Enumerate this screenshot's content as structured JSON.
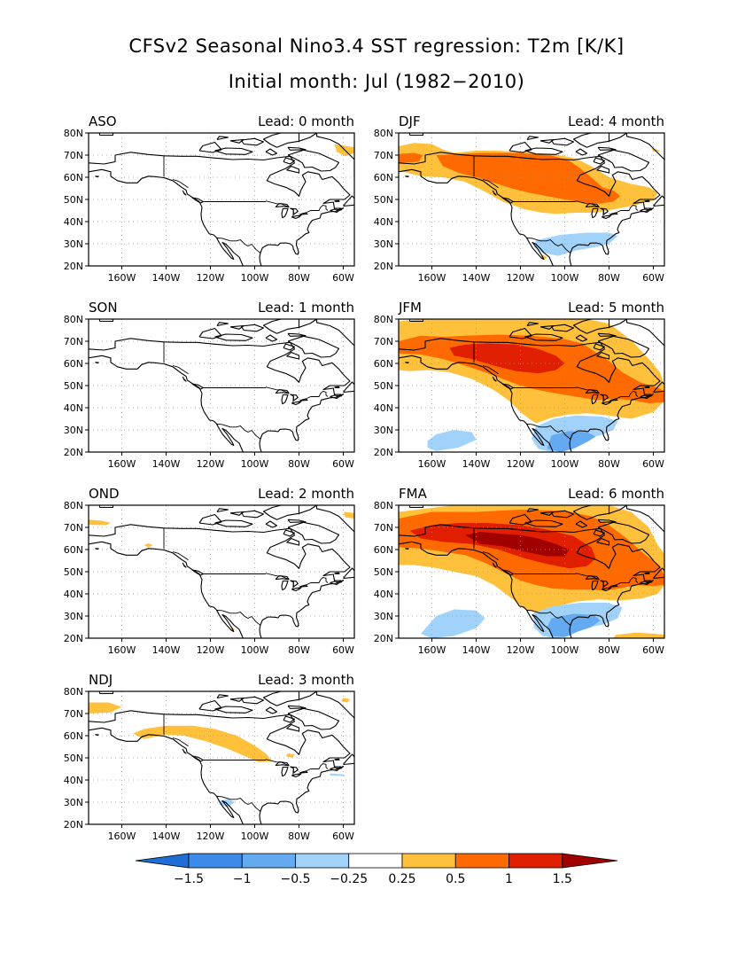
{
  "header": {
    "title": "CFSv2 Seasonal Nino3.4 SST regression: T2m [K/K]",
    "subtitle": "Initial month: Jul (1982−2010)"
  },
  "axes": {
    "lat_ticks": [
      "80N",
      "70N",
      "60N",
      "50N",
      "40N",
      "30N",
      "20N"
    ],
    "lon_ticks": [
      "160W",
      "140W",
      "120W",
      "100W",
      "80W",
      "60W"
    ]
  },
  "panels": [
    {
      "season": "ASO",
      "lead": "Lead: 0 month"
    },
    {
      "season": "SON",
      "lead": "Lead: 1 month"
    },
    {
      "season": "OND",
      "lead": "Lead: 2 month"
    },
    {
      "season": "NDJ",
      "lead": "Lead: 3 month"
    },
    {
      "season": "DJF",
      "lead": "Lead: 4 month"
    },
    {
      "season": "JFM",
      "lead": "Lead: 5 month"
    },
    {
      "season": "FMA",
      "lead": "Lead: 6 month"
    }
  ],
  "colorbar": {
    "labels": [
      "−1.5",
      "−1",
      "−0.5",
      "−0.25",
      "0.25",
      "0.5",
      "1",
      "1.5"
    ],
    "colors": [
      "#1e6ed6",
      "#3c8be8",
      "#64aaf0",
      "#a0d2fa",
      "#ffffff",
      "#ffc03c",
      "#ff6a00",
      "#e01e00",
      "#a00000"
    ]
  },
  "chart_data": {
    "type": "map",
    "variable": "T2m regression on Nino3.4 SST [K/K]",
    "lat_range": [
      "20N",
      "80N"
    ],
    "lon_range": [
      "175W",
      "55W"
    ],
    "levels": [
      -1.5,
      -1,
      -0.5,
      -0.25,
      0.25,
      0.5,
      1,
      1.5
    ]
  }
}
